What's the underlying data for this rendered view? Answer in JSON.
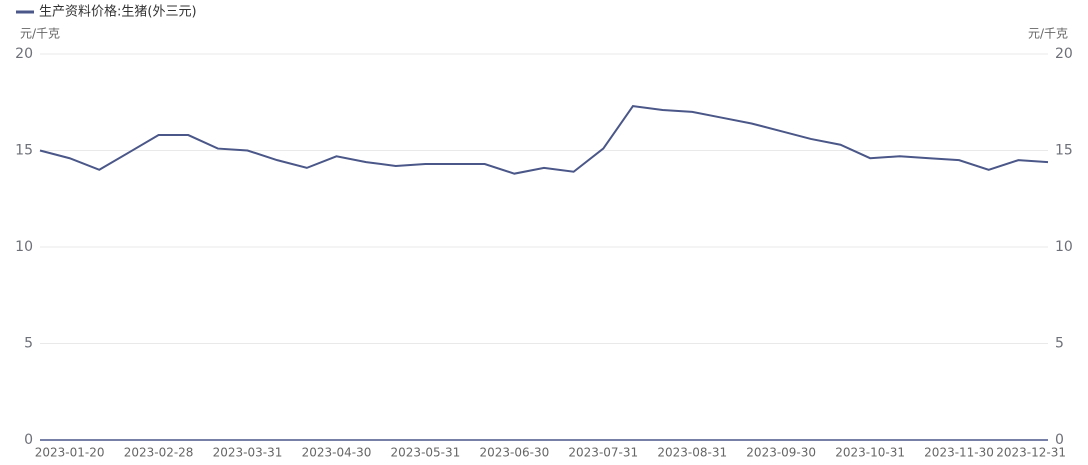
{
  "chart_data": {
    "type": "line",
    "y_axis_label": "元/千克",
    "y2_axis_label": "元/千克",
    "categories": [
      null,
      "2023-01-20",
      null,
      null,
      "2023-02-28",
      null,
      null,
      "2023-03-31",
      null,
      null,
      "2023-04-30",
      null,
      null,
      "2023-05-31",
      null,
      null,
      "2023-06-30",
      null,
      null,
      "2023-07-31",
      null,
      null,
      "2023-08-31",
      null,
      null,
      "2023-09-30",
      null,
      null,
      "2023-10-31",
      null,
      null,
      "2023-11-30",
      null,
      null,
      "2023-12-31"
    ],
    "series": [
      {
        "name": "生产资料价格:生猪(外三元)",
        "color": "#4a5788",
        "axis": "y",
        "values": [
          15.0,
          14.6,
          14.0,
          14.9,
          15.8,
          15.8,
          15.1,
          15.0,
          14.5,
          14.1,
          14.7,
          14.4,
          14.2,
          14.3,
          14.3,
          14.3,
          13.8,
          14.1,
          13.9,
          15.1,
          17.3,
          17.1,
          17.0,
          16.7,
          16.4,
          16.0,
          15.6,
          15.3,
          14.6,
          14.7,
          14.6,
          14.5,
          14.0,
          14.5,
          14.4
        ]
      }
    ],
    "ylim": [
      0,
      20
    ],
    "yticks": [
      0,
      5,
      10,
      15,
      20
    ],
    "y2lim": [
      0,
      20
    ],
    "y2ticks": [
      0,
      5,
      10,
      15,
      20
    ],
    "grid": true,
    "legend": "top-left"
  }
}
